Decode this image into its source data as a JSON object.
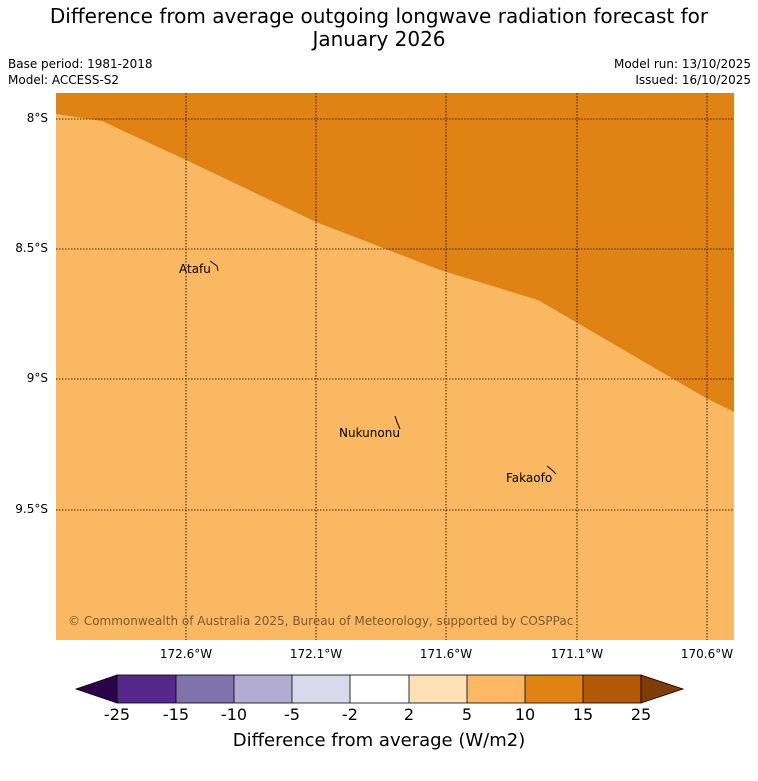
{
  "title_line1": "Difference from average outgoing longwave radiation forecast for",
  "title_line2": "January 2026",
  "meta": {
    "base_period": "Base period: 1981-2018",
    "model": "Model: ACCESS-S2",
    "model_run": "Model run: 13/10/2025",
    "issued": "Issued: 16/10/2025"
  },
  "map": {
    "lat_labels": [
      "8°S",
      "8.5°S",
      "9°S",
      "9.5°S"
    ],
    "lon_labels": [
      "172.6°W",
      "172.1°W",
      "171.6°W",
      "171.1°W",
      "170.6°W"
    ],
    "places": [
      {
        "name": "Atafu"
      },
      {
        "name": "Nukunonu"
      },
      {
        "name": "Fakaofo"
      }
    ],
    "credit": "© Commonwealth of Australia 2025, Bureau of Meteorology, supported by COSPPac",
    "fill_colors": {
      "band_5_10": "#fbb862",
      "band_10_15": "#e08214"
    }
  },
  "colorbar": {
    "ticks": [
      "-25",
      "-15",
      "-10",
      "-5",
      "-2",
      "2",
      "5",
      "10",
      "15",
      "25"
    ],
    "colors": [
      "#2d004b",
      "#542788",
      "#8073ac",
      "#b2abd2",
      "#d8daeb",
      "#ffffff",
      "#fee0b6",
      "#fdb863",
      "#e08214",
      "#b35806",
      "#7f3b08"
    ],
    "label": "Difference from average (W/m2)"
  }
}
